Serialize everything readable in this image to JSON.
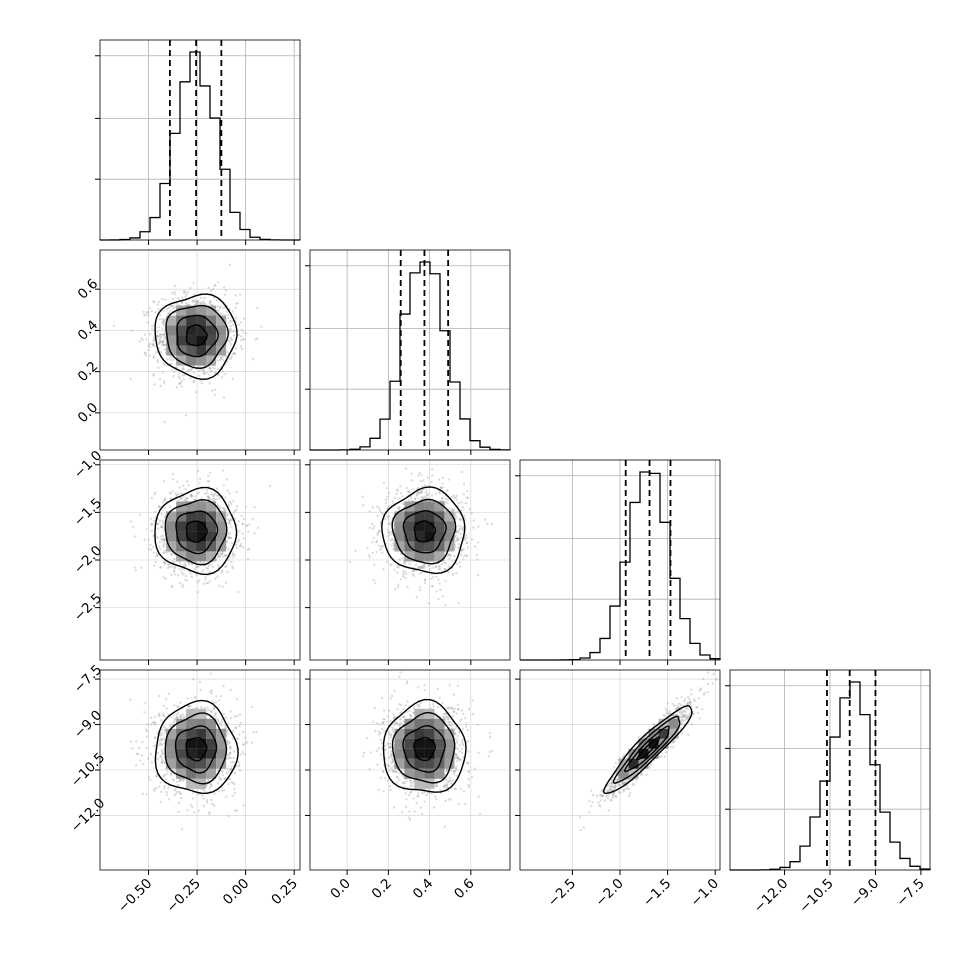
{
  "chart_data": {
    "type": "corner",
    "parameters": [
      {
        "range": [
          -0.75,
          0.28
        ],
        "ticks": [
          -0.5,
          -0.25,
          0.0,
          0.25
        ],
        "tick_labels": [
          "−0.50",
          "−0.25",
          "0.00",
          "0.25"
        ],
        "mean": -0.255,
        "std": 0.105,
        "quantiles": [
          -0.39,
          -0.255,
          -0.125
        ]
      },
      {
        "range": [
          -0.18,
          0.79
        ],
        "ticks": [
          0.0,
          0.2,
          0.4,
          0.6
        ],
        "tick_labels": [
          "0.0",
          "0.2",
          "0.4",
          "0.6"
        ],
        "mean": 0.375,
        "std": 0.1,
        "quantiles": [
          0.26,
          0.375,
          0.49
        ]
      },
      {
        "range": [
          -3.05,
          -0.95
        ],
        "ticks": [
          -2.5,
          -2.0,
          -1.5,
          -1.0
        ],
        "tick_labels": [
          "−2.5",
          "−2.0",
          "−1.5",
          "−1.0"
        ],
        "mean": -1.7,
        "std": 0.22,
        "quantiles": [
          -1.94,
          -1.69,
          -1.47
        ]
      },
      {
        "range": [
          -13.8,
          -7.2
        ],
        "ticks": [
          -12.0,
          -10.5,
          -9.0,
          -7.5
        ],
        "tick_labels": [
          "−12.0",
          "−10.5",
          "−9.0",
          "−7.5"
        ],
        "mean": -9.8,
        "std": 0.75,
        "quantiles": [
          -10.6,
          -9.85,
          -9.0
        ]
      }
    ],
    "correlations": [
      [
        1,
        0,
        0,
        0
      ],
      [
        0,
        1,
        0,
        0
      ],
      [
        0,
        0,
        1,
        0.93
      ],
      [
        0,
        0,
        0.93,
        1
      ]
    ],
    "histogram_bins": 20,
    "quantile_line_style": "dashed",
    "contour_levels": [
      0.5,
      1.0,
      1.5,
      2.0
    ],
    "grid": true,
    "colors": {
      "line": "#000000",
      "points": "#9a9a9a",
      "grid": "#b0b0b0",
      "density_dark": "#000000"
    }
  }
}
